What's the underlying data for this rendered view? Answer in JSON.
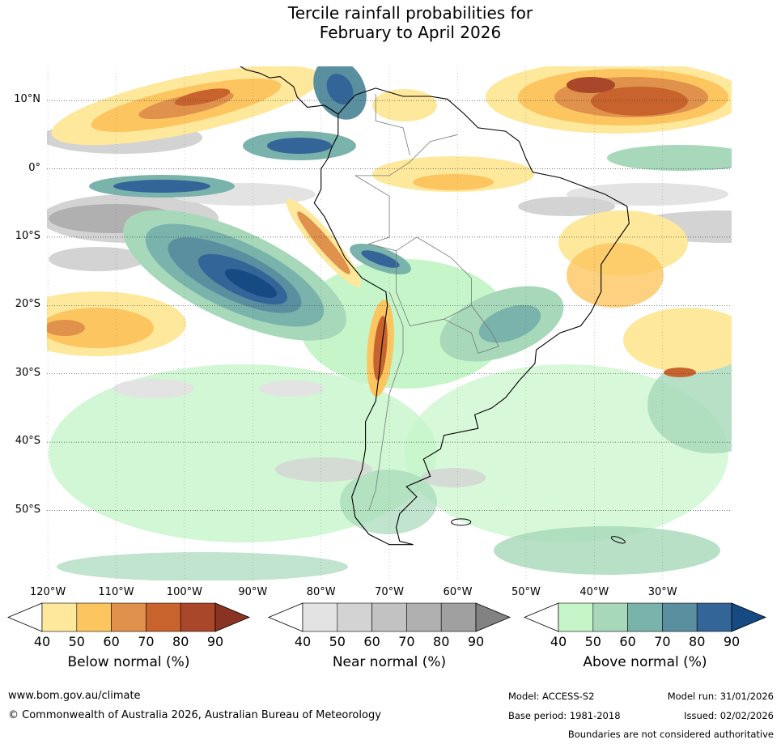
{
  "title_line1": "Tercile rainfall probabilities for",
  "title_line2": "February to April 2026",
  "latitudes": [
    {
      "label": "10°N",
      "lat": 10
    },
    {
      "label": "0°",
      "lat": 0
    },
    {
      "label": "10°S",
      "lat": -10
    },
    {
      "label": "20°S",
      "lat": -20
    },
    {
      "label": "30°S",
      "lat": -30
    },
    {
      "label": "40°S",
      "lat": -40
    },
    {
      "label": "50°S",
      "lat": -50
    }
  ],
  "longitudes": [
    {
      "label": "120°W",
      "lon": -120
    },
    {
      "label": "110°W",
      "lon": -110
    },
    {
      "label": "100°W",
      "lon": -100
    },
    {
      "label": "90°W",
      "lon": -90
    },
    {
      "label": "80°W",
      "lon": -80
    },
    {
      "label": "70°W",
      "lon": -70
    },
    {
      "label": "60°W",
      "lon": -60
    },
    {
      "label": "50°W",
      "lon": -50
    },
    {
      "label": "40°W",
      "lon": -40
    },
    {
      "label": "30°W",
      "lon": -30
    }
  ],
  "colorbars": [
    {
      "title": "Below normal (%)",
      "ticks": [
        "40",
        "50",
        "60",
        "70",
        "80",
        "90"
      ],
      "colors": [
        "#ffffff",
        "#fee89c",
        "#fdc55f",
        "#e0914b",
        "#c8632e",
        "#a8472a",
        "#8b3322"
      ]
    },
    {
      "title": "Near normal (%)",
      "ticks": [
        "40",
        "50",
        "60",
        "70",
        "80",
        "90"
      ],
      "colors": [
        "#ffffff",
        "#e3e3e3",
        "#d3d3d3",
        "#c2c2c2",
        "#b0b0b0",
        "#a0a0a0",
        "#828282"
      ]
    },
    {
      "title": "Above normal (%)",
      "ticks": [
        "40",
        "50",
        "60",
        "70",
        "80",
        "90"
      ],
      "colors": [
        "#ffffff",
        "#c6f5c9",
        "#a6d8b9",
        "#7ab3ab",
        "#5a8fa0",
        "#336598",
        "#154a82"
      ]
    }
  ],
  "footer": {
    "url": "www.bom.gov.au/climate",
    "copyright": "© Commonwealth of Australia 2026, Australian Bureau of Meteorology",
    "model": "Model: ACCESS-S2",
    "model_run": "Model run: 31/01/2026",
    "base_period": "Base period: 1981-2018",
    "issued": "Issued: 02/02/2026",
    "disclaimer": "Boundaries are not considered authoritative"
  }
}
